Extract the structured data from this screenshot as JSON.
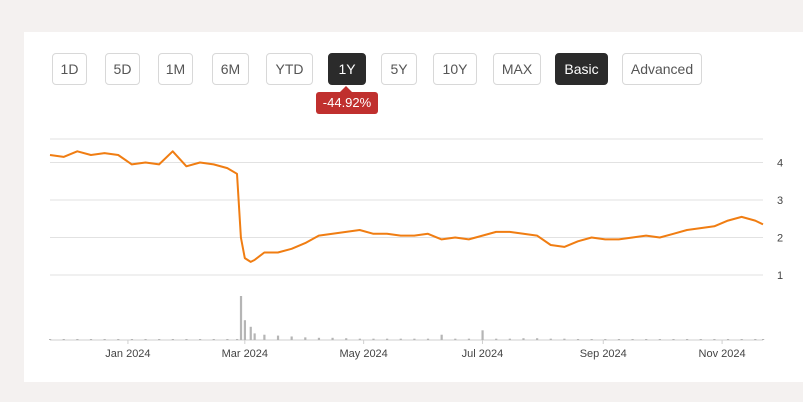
{
  "range_buttons": [
    {
      "label": "1D",
      "active": false
    },
    {
      "label": "5D",
      "active": false
    },
    {
      "label": "1M",
      "active": false
    },
    {
      "label": "6M",
      "active": false
    },
    {
      "label": "YTD",
      "active": false
    },
    {
      "label": "1Y",
      "active": true
    },
    {
      "label": "5Y",
      "active": false
    },
    {
      "label": "10Y",
      "active": false
    },
    {
      "label": "MAX",
      "active": false
    }
  ],
  "view_buttons": [
    {
      "label": "Basic",
      "active": true
    },
    {
      "label": "Advanced",
      "active": false
    }
  ],
  "change_badge": {
    "text": "-44.92%",
    "color": "#c0302e"
  },
  "chart_data": {
    "type": "line",
    "title": "",
    "xlabel": "",
    "ylabel": "",
    "series_color": "#f07d12",
    "volume_color": "#b5b5b5",
    "ylim": [
      0.6,
      4.6
    ],
    "y_ticks": [
      1,
      2,
      3,
      4
    ],
    "y_tick_labels": [
      "1",
      "2",
      "3",
      "4"
    ],
    "x_tick_labels": [
      "Jan 2024",
      "Mar 2024",
      "May 2024",
      "Jul 2024",
      "Sep 2024",
      "Nov 2024"
    ],
    "grid": true,
    "x": [
      "2023-11-22",
      "2023-11-29",
      "2023-12-06",
      "2023-12-13",
      "2023-12-20",
      "2023-12-27",
      "2024-01-03",
      "2024-01-10",
      "2024-01-17",
      "2024-01-24",
      "2024-01-31",
      "2024-02-07",
      "2024-02-14",
      "2024-02-21",
      "2024-02-26",
      "2024-02-28",
      "2024-03-01",
      "2024-03-04",
      "2024-03-06",
      "2024-03-11",
      "2024-03-18",
      "2024-03-25",
      "2024-04-01",
      "2024-04-08",
      "2024-04-15",
      "2024-04-22",
      "2024-04-29",
      "2024-05-06",
      "2024-05-13",
      "2024-05-20",
      "2024-05-27",
      "2024-06-03",
      "2024-06-10",
      "2024-06-17",
      "2024-06-24",
      "2024-07-01",
      "2024-07-08",
      "2024-07-15",
      "2024-07-22",
      "2024-07-29",
      "2024-08-05",
      "2024-08-12",
      "2024-08-19",
      "2024-08-26",
      "2024-09-02",
      "2024-09-09",
      "2024-09-16",
      "2024-09-23",
      "2024-09-30",
      "2024-10-07",
      "2024-10-14",
      "2024-10-21",
      "2024-10-28",
      "2024-11-04",
      "2024-11-11",
      "2024-11-18",
      "2024-11-22"
    ],
    "values": [
      4.2,
      4.15,
      4.3,
      4.2,
      4.25,
      4.2,
      3.95,
      4.0,
      3.95,
      4.3,
      3.9,
      4.0,
      3.95,
      3.85,
      3.7,
      2.0,
      1.45,
      1.35,
      1.4,
      1.6,
      1.6,
      1.7,
      1.85,
      2.05,
      2.1,
      2.15,
      2.2,
      2.1,
      2.1,
      2.05,
      2.05,
      2.1,
      1.95,
      2.0,
      1.95,
      2.05,
      2.15,
      2.15,
      2.1,
      2.05,
      1.8,
      1.75,
      1.9,
      2.0,
      1.95,
      1.95,
      2.0,
      2.05,
      2.0,
      2.1,
      2.2,
      2.25,
      2.3,
      2.45,
      2.55,
      2.45,
      2.35
    ],
    "volume": [
      0.01,
      0.01,
      0.01,
      0.01,
      0.01,
      0.01,
      0.01,
      0.01,
      0.01,
      0.01,
      0.01,
      0.01,
      0.01,
      0.02,
      0.02,
      1.0,
      0.45,
      0.3,
      0.15,
      0.12,
      0.1,
      0.08,
      0.06,
      0.05,
      0.05,
      0.04,
      0.03,
      0.03,
      0.03,
      0.03,
      0.03,
      0.03,
      0.12,
      0.03,
      0.03,
      0.22,
      0.03,
      0.03,
      0.04,
      0.04,
      0.03,
      0.03,
      0.02,
      0.02,
      0.02,
      0.02,
      0.02,
      0.02,
      0.02,
      0.02,
      0.02,
      0.02,
      0.02,
      0.02,
      0.02,
      0.02,
      0.02
    ]
  }
}
